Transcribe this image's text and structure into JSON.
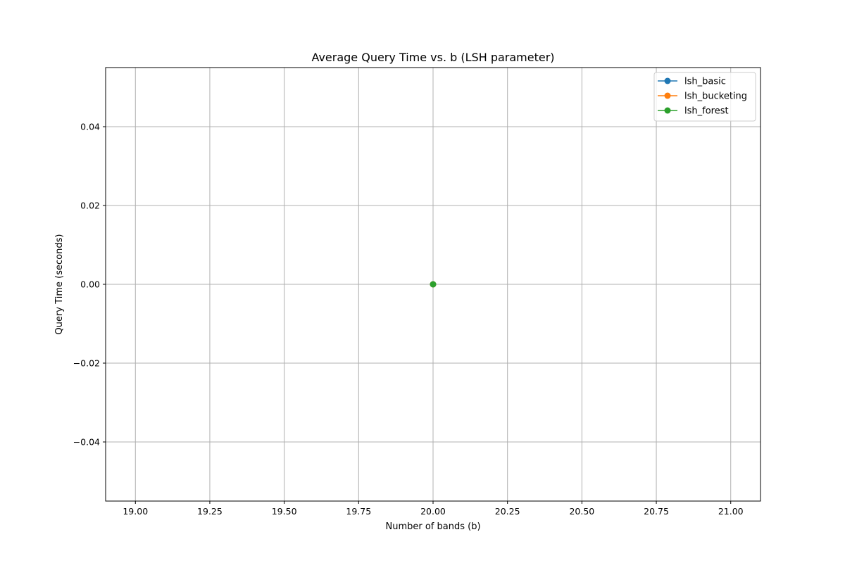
{
  "chart_data": {
    "type": "line",
    "title": "Average Query Time vs. b (LSH parameter)",
    "xlabel": "Number of bands (b)",
    "ylabel": "Query Time (seconds)",
    "xlim": [
      18.9,
      21.1
    ],
    "ylim": [
      -0.055,
      0.055
    ],
    "xticks": [
      19.0,
      19.25,
      19.5,
      19.75,
      20.0,
      20.25,
      20.5,
      20.75,
      21.0
    ],
    "xtick_labels": [
      "19.00",
      "19.25",
      "19.50",
      "19.75",
      "20.00",
      "20.25",
      "20.50",
      "20.75",
      "21.00"
    ],
    "yticks": [
      -0.04,
      -0.02,
      0.0,
      0.02,
      0.04
    ],
    "ytick_labels": [
      "−0.04",
      "−0.02",
      "0.00",
      "0.02",
      "0.04"
    ],
    "grid": true,
    "legend_position": "top-right",
    "series": [
      {
        "name": "lsh_basic",
        "color": "#1f77b4",
        "marker": "circle",
        "x": [
          20
        ],
        "y": [
          0.0
        ]
      },
      {
        "name": "lsh_bucketing",
        "color": "#ff7f0e",
        "marker": "circle",
        "x": [
          20
        ],
        "y": [
          0.0
        ]
      },
      {
        "name": "lsh_forest",
        "color": "#2ca02c",
        "marker": "circle",
        "x": [
          20
        ],
        "y": [
          0.0
        ]
      }
    ]
  }
}
